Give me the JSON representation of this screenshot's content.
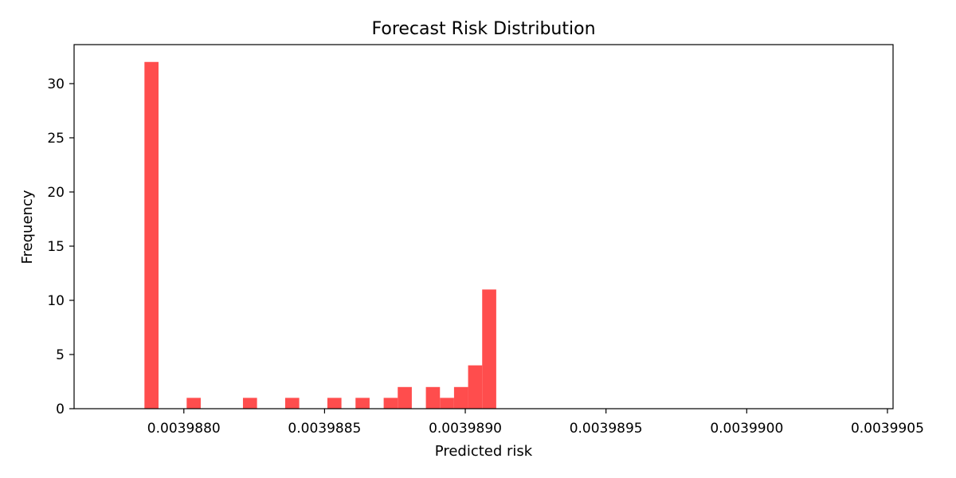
{
  "chart_data": {
    "type": "bar",
    "title": "Forecast Risk Distribution",
    "xlabel": "Predicted risk",
    "ylabel": "Frequency",
    "bar_color": "#ff4d4d",
    "xlim": [
      0.00398761,
      0.00399052
    ],
    "ylim": [
      0,
      33.6
    ],
    "x_ticks": [
      {
        "value": 0.003988,
        "label": "0.0039880"
      },
      {
        "value": 0.0039885,
        "label": "0.0039885"
      },
      {
        "value": 0.003989,
        "label": "0.0039890"
      },
      {
        "value": 0.0039895,
        "label": "0.0039895"
      },
      {
        "value": 0.00399,
        "label": "0.0039900"
      },
      {
        "value": 0.0039905,
        "label": "0.0039905"
      }
    ],
    "y_ticks": [
      {
        "value": 0,
        "label": "0"
      },
      {
        "value": 5,
        "label": "5"
      },
      {
        "value": 10,
        "label": "10"
      },
      {
        "value": 15,
        "label": "15"
      },
      {
        "value": 20,
        "label": "20"
      },
      {
        "value": 25,
        "label": "25"
      },
      {
        "value": 30,
        "label": "30"
      }
    ],
    "bins": [
      {
        "x0": 0.00398786,
        "x1": 0.00398791,
        "count": 32
      },
      {
        "x0": 0.00398791,
        "x1": 0.00398796,
        "count": 0
      },
      {
        "x0": 0.00398796,
        "x1": 0.00398801,
        "count": 0
      },
      {
        "x0": 0.00398801,
        "x1": 0.00398806,
        "count": 1
      },
      {
        "x0": 0.00398806,
        "x1": 0.00398811,
        "count": 0
      },
      {
        "x0": 0.00398811,
        "x1": 0.00398816,
        "count": 0
      },
      {
        "x0": 0.00398816,
        "x1": 0.00398821,
        "count": 0
      },
      {
        "x0": 0.00398821,
        "x1": 0.00398826,
        "count": 1
      },
      {
        "x0": 0.00398826,
        "x1": 0.00398831,
        "count": 0
      },
      {
        "x0": 0.00398831,
        "x1": 0.00398836,
        "count": 0
      },
      {
        "x0": 0.00398836,
        "x1": 0.00398841,
        "count": 1
      },
      {
        "x0": 0.00398841,
        "x1": 0.00398846,
        "count": 0
      },
      {
        "x0": 0.00398846,
        "x1": 0.00398851,
        "count": 0
      },
      {
        "x0": 0.00398851,
        "x1": 0.00398856,
        "count": 1
      },
      {
        "x0": 0.00398856,
        "x1": 0.00398861,
        "count": 0
      },
      {
        "x0": 0.00398861,
        "x1": 0.00398866,
        "count": 1
      },
      {
        "x0": 0.00398866,
        "x1": 0.00398871,
        "count": 0
      },
      {
        "x0": 0.00398871,
        "x1": 0.00398876,
        "count": 1
      },
      {
        "x0": 0.00398876,
        "x1": 0.00398881,
        "count": 2
      },
      {
        "x0": 0.00398881,
        "x1": 0.00398886,
        "count": 0
      },
      {
        "x0": 0.00398886,
        "x1": 0.00398891,
        "count": 2
      },
      {
        "x0": 0.00398891,
        "x1": 0.00398896,
        "count": 1
      },
      {
        "x0": 0.00398896,
        "x1": 0.00398901,
        "count": 2
      },
      {
        "x0": 0.00398901,
        "x1": 0.00398906,
        "count": 4
      },
      {
        "x0": 0.00398906,
        "x1": 0.00398911,
        "count": 11
      }
    ],
    "grid": false,
    "legend": "none"
  }
}
